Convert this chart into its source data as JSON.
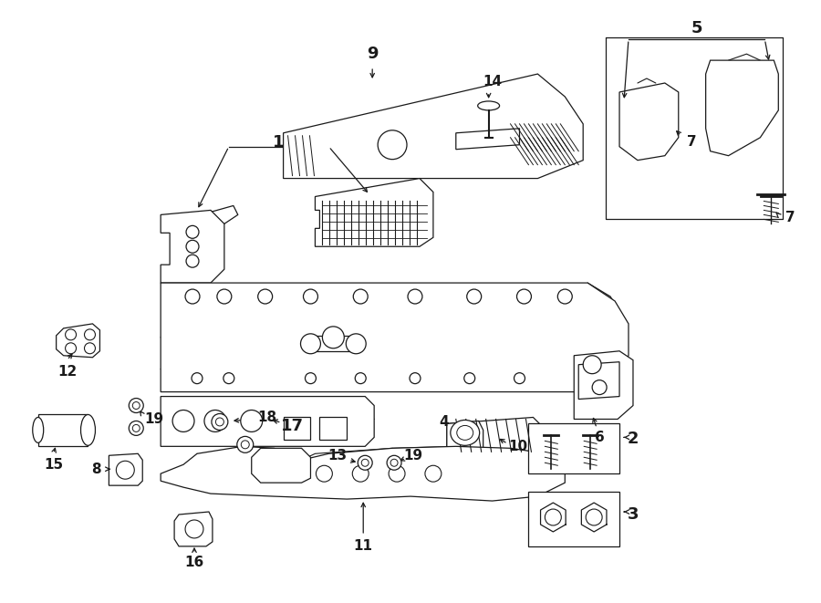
{
  "background_color": "#ffffff",
  "line_color": "#1a1a1a",
  "fig_width": 9.0,
  "fig_height": 6.61,
  "lw": 0.9,
  "fontsize_large": 13,
  "fontsize_small": 11
}
